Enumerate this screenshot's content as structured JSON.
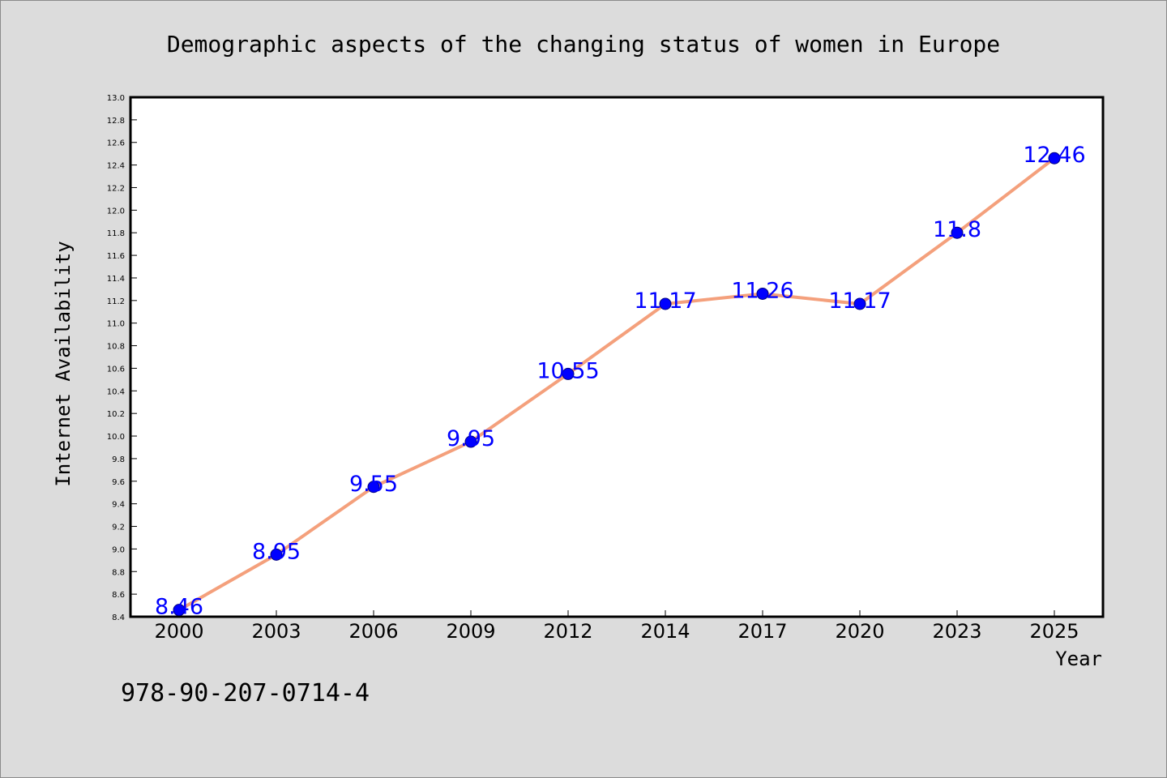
{
  "chart_data": {
    "type": "line",
    "title": "Demographic aspects of the changing status of women in Europe",
    "xlabel": "Year",
    "ylabel": "Internet Availability",
    "categories": [
      "2000",
      "2003",
      "2006",
      "2009",
      "2012",
      "2014",
      "2017",
      "2020",
      "2023",
      "2025"
    ],
    "series": [
      {
        "values": [
          8.46,
          8.95,
          9.55,
          9.95,
          10.55,
          11.17,
          11.26,
          11.17,
          11.8,
          12.46
        ],
        "data_labels": [
          "8.46",
          "8.95",
          "9.55",
          "9.95",
          "10.55",
          "11.17",
          "11.26",
          "11.17",
          "11.8",
          "12.46"
        ]
      }
    ],
    "ylim": [
      8.4,
      13.0
    ],
    "y_ticks": [
      "8.4",
      "8.6",
      "8.8",
      "9.0",
      "9.2",
      "9.4",
      "9.6",
      "9.8",
      "10.0",
      "10.2",
      "10.4",
      "10.6",
      "10.8",
      "11.0",
      "11.2",
      "11.4",
      "11.6",
      "11.8",
      "12.0",
      "12.2",
      "12.4",
      "12.6",
      "12.8",
      "13.0"
    ],
    "grid": false,
    "legend": "none",
    "colors": {
      "line": "#f4a07c",
      "marker": "#0000ff",
      "marker_edge": "#000080",
      "data_label": "#0000ff",
      "background": "#dcdcdc",
      "plot_area": "#ffffff"
    }
  },
  "footer_text": "978-90-207-0714-4"
}
